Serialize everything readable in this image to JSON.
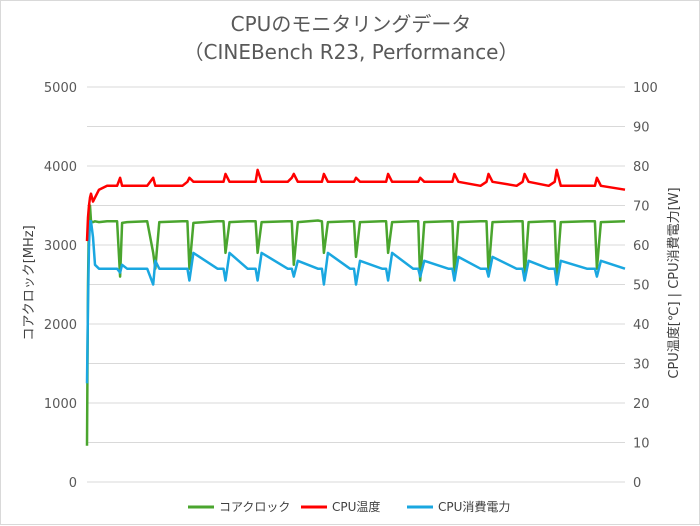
{
  "chart_data": {
    "type": "line",
    "title": "CPUのモニタリングデータ",
    "subtitle": "（CINEBench R23, Performance）",
    "ylabel": "コアクロック[MHz]",
    "y2label": "CPU温度[℃] | CPU消費電力[W]",
    "ylim": [
      0,
      5000
    ],
    "y2lim": [
      0,
      100
    ],
    "yticks": [
      "0",
      "1000",
      "2000",
      "3000",
      "4000",
      "5000"
    ],
    "y2ticks": [
      "0",
      "10",
      "20",
      "30",
      "40",
      "50",
      "60",
      "70",
      "80",
      "90",
      "100"
    ],
    "grid": true,
    "legend_position": "bottom",
    "x": [
      0,
      1,
      2,
      3,
      4,
      6,
      8,
      12,
      20,
      30,
      33,
      35,
      40,
      60,
      66,
      68,
      72,
      95,
      100,
      102,
      106,
      130,
      136,
      138,
      142,
      160,
      168,
      170,
      174,
      200,
      204,
      206,
      210,
      230,
      234,
      236,
      240,
      262,
      266,
      268,
      272,
      294,
      298,
      300,
      304,
      325,
      330,
      332,
      336,
      360,
      364,
      366,
      370,
      392,
      398,
      400,
      404,
      428,
      434,
      436,
      440,
      460,
      466,
      468,
      472,
      498,
      506,
      508,
      512,
      536
    ],
    "series": [
      {
        "name": "コアクロック",
        "axis": "left",
        "color": "#4aa52e",
        "values": [
          460,
          2500,
          3400,
          3500,
          3300,
          3290,
          3300,
          3290,
          3300,
          3300,
          2600,
          3280,
          3290,
          3300,
          2900,
          2700,
          3290,
          3300,
          3300,
          2700,
          3280,
          3300,
          3300,
          2900,
          3290,
          3300,
          3300,
          2900,
          3290,
          3300,
          3300,
          2750,
          3290,
          3310,
          3300,
          2900,
          3290,
          3300,
          3300,
          2850,
          3290,
          3300,
          3300,
          2900,
          3290,
          3300,
          3300,
          2550,
          3290,
          3300,
          3300,
          2600,
          3290,
          3300,
          3300,
          2650,
          3290,
          3300,
          3300,
          2600,
          3290,
          3300,
          3300,
          2600,
          3290,
          3300,
          3300,
          2700,
          3290,
          3300
        ]
      },
      {
        "name": "CPU温度",
        "axis": "right",
        "color": "#ff0000",
        "values": [
          61,
          67,
          70,
          72,
          73,
          71,
          72,
          74,
          75,
          75,
          77,
          75,
          75,
          75,
          77,
          75,
          75,
          75,
          76,
          77,
          76,
          76,
          76,
          78,
          76,
          76,
          76,
          79,
          76,
          76,
          77,
          78,
          76,
          76,
          76,
          78,
          76,
          76,
          76,
          77,
          76,
          76,
          76,
          78,
          76,
          76,
          76,
          77,
          76,
          76,
          76,
          78,
          76,
          75,
          76,
          78,
          76,
          75,
          76,
          78,
          76,
          75,
          76,
          79,
          75,
          75,
          75,
          77,
          75,
          74
        ]
      },
      {
        "name": "CPU消費電力",
        "axis": "right",
        "color": "#1aa7e0",
        "values": [
          25,
          45,
          60,
          66,
          66,
          62,
          55,
          54,
          54,
          54,
          53,
          55,
          54,
          54,
          50,
          56,
          54,
          54,
          54,
          51,
          58,
          54,
          54,
          51,
          58,
          54,
          54,
          51,
          58,
          54,
          54,
          52,
          56,
          54,
          54,
          50,
          58,
          54,
          54,
          50,
          56,
          54,
          54,
          51,
          58,
          54,
          54,
          52,
          56,
          54,
          54,
          51,
          57,
          54,
          54,
          52,
          57,
          54,
          54,
          51,
          56,
          54,
          54,
          50,
          56,
          54,
          54,
          52,
          56,
          54
        ]
      }
    ]
  }
}
